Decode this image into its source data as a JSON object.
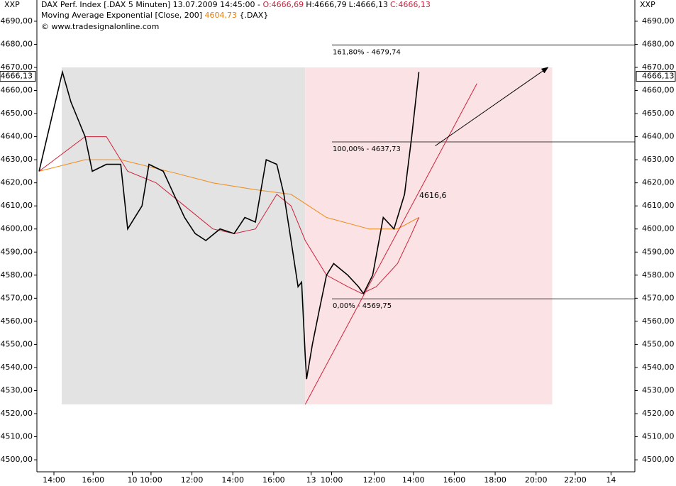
{
  "chart_data": {
    "type": "line",
    "header": {
      "symbol": "XXP",
      "title": "DAX Perf. Index [.DAX  5 Minuten] 13.07.2009 14:45:00 - ",
      "ohlc": [
        "O:4666,69",
        "H:4666,79",
        "L:4666,13",
        "C:4666,13"
      ],
      "indicator": "Moving Average Exponential [Close, 200] ",
      "indicator_value": "4604,73",
      "indicator_symbol": " {.DAX}",
      "copyright": "© www.tradesignalonline.com"
    },
    "last_price": {
      "value": 4666.13,
      "label": "4666,13"
    },
    "xlim": [
      0,
      351
    ],
    "ylim": [
      4494.8,
      4699.2
    ],
    "xticks": [
      {
        "value": 10,
        "label": "14:00"
      },
      {
        "value": 33,
        "label": "16:00"
      },
      {
        "value": 56,
        "label": "10"
      },
      {
        "value": 67,
        "label": "10:00"
      },
      {
        "value": 91,
        "label": "12:00"
      },
      {
        "value": 115,
        "label": "14:00"
      },
      {
        "value": 139,
        "label": "16:00"
      },
      {
        "value": 161,
        "label": "13"
      },
      {
        "value": 173,
        "label": "10:00"
      },
      {
        "value": 198,
        "label": "12:00"
      },
      {
        "value": 221,
        "label": "14:00"
      },
      {
        "value": 245,
        "label": "16:00"
      },
      {
        "value": 269,
        "label": "18:00"
      },
      {
        "value": 293,
        "label": "20:00"
      },
      {
        "value": 316,
        "label": "22:00"
      },
      {
        "value": 337,
        "label": "14"
      }
    ],
    "yticks": [
      {
        "value": 4500,
        "label": "4500,00"
      },
      {
        "value": 4510,
        "label": "4510,00"
      },
      {
        "value": 4520,
        "label": "4520,00"
      },
      {
        "value": 4530,
        "label": "4530,00"
      },
      {
        "value": 4540,
        "label": "4540,00"
      },
      {
        "value": 4550,
        "label": "4550,00"
      },
      {
        "value": 4560,
        "label": "4560,00"
      },
      {
        "value": 4570,
        "label": "4570,00"
      },
      {
        "value": 4580,
        "label": "4580,00"
      },
      {
        "value": 4590,
        "label": "4590,00"
      },
      {
        "value": 4600,
        "label": "4600,00"
      },
      {
        "value": 4610,
        "label": "4610,00"
      },
      {
        "value": 4620,
        "label": "4620,00"
      },
      {
        "value": 4630,
        "label": "4630,00"
      },
      {
        "value": 4640,
        "label": "4640,00"
      },
      {
        "value": 4650,
        "label": "4650,00"
      },
      {
        "value": 4660,
        "label": "4660,00"
      },
      {
        "value": 4670,
        "label": "4670,00"
      },
      {
        "value": 4680,
        "label": "4680,00"
      },
      {
        "value": 4690,
        "label": "4690,00"
      }
    ],
    "regions": [
      {
        "x": [
          14.6,
          157.5
        ],
        "y": [
          4524,
          4670
        ],
        "color": "#e3e3e3"
      },
      {
        "x": [
          157.5,
          302.5
        ],
        "y": [
          4524,
          4670
        ],
        "color": "#fbe3e5"
      }
    ],
    "series": [
      {
        "color": "#f08a1a",
        "x": [
          1.3,
          28.3,
          49.2,
          82.5,
          103.3,
          128.3,
          149.2,
          170,
          195,
          211.7,
          224.2
        ],
        "values": [
          4625,
          4630,
          4630,
          4624,
          4620,
          4617,
          4615,
          4605,
          4600,
          4600,
          4605
        ]
      },
      {
        "color": "#d0203a",
        "x": [
          1.3,
          28.3,
          40.8,
          53.3,
          70,
          86.7,
          103.3,
          115.8,
          128.3,
          140.8,
          149.2,
          157.5,
          170,
          182.5,
          190.8,
          199.2,
          211.7,
          220,
          224.2
        ],
        "values": [
          4625,
          4640,
          4640,
          4625,
          4620,
          4610,
          4600,
          4598,
          4600,
          4615,
          4610,
          4595,
          4580,
          4575,
          4572,
          4575,
          4585,
          4598,
          4605
        ]
      },
      {
        "color": "#000000",
        "x": [
          1.3,
          15,
          20,
          28.3,
          32.5,
          40.8,
          49.2,
          53.3,
          61.7,
          65.8,
          74.2,
          80.4,
          86.7,
          92.9,
          99.2,
          107.5,
          115.8,
          122.1,
          128.3,
          134.6,
          140.8,
          145,
          149.2,
          153.3,
          155.4,
          157.5,
          158.3,
          161.7,
          165.8,
          170,
          174.2,
          182.5,
          188.8,
          191.7,
          197.1,
          203.3,
          209.6,
          215.8,
          220,
          224.2
        ],
        "values": [
          4625,
          4668,
          4655,
          4640,
          4625,
          4628,
          4628,
          4600,
          4610,
          4628,
          4625,
          4615,
          4605,
          4598,
          4595,
          4600,
          4598,
          4605,
          4603,
          4630,
          4628,
          4615,
          4595,
          4575,
          4577,
          4545,
          4535,
          4550,
          4565,
          4580,
          4585,
          4580,
          4575,
          4572,
          4580,
          4605,
          4600,
          4615,
          4640,
          4668
        ]
      }
    ],
    "fib_levels": [
      {
        "value": 4679.74,
        "label": "161,80% - 4679,74"
      },
      {
        "value": 4637.73,
        "label": "100,00% - 4637,73"
      },
      {
        "value": 4569.75,
        "label": "0,00% - 4569,75"
      }
    ],
    "trend_line": {
      "x": [
        157.5,
        258.3
      ],
      "y": [
        4524,
        4663
      ],
      "color": "#d0203a",
      "label": "4616,6"
    },
    "arrow": {
      "x": [
        233.8,
        300
      ],
      "y": [
        4636,
        4670
      ],
      "color": "#000000"
    }
  }
}
